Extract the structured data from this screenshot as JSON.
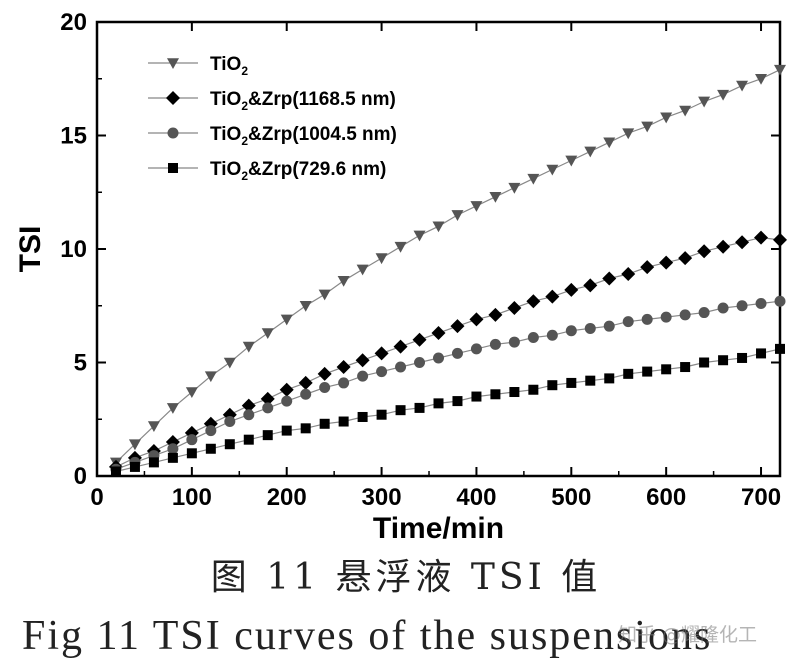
{
  "chart_data": {
    "type": "line",
    "title": "",
    "xlabel": "Time/min",
    "ylabel": "TSI",
    "xlim": [
      0,
      720
    ],
    "ylim": [
      0,
      20
    ],
    "xticks": [
      0,
      100,
      200,
      300,
      400,
      500,
      600,
      700
    ],
    "yticks": [
      0,
      5,
      10,
      15,
      20
    ],
    "grid": false,
    "legend_position": "top-left",
    "x": [
      20,
      40,
      60,
      80,
      100,
      120,
      140,
      160,
      180,
      200,
      220,
      240,
      260,
      280,
      300,
      320,
      340,
      360,
      380,
      400,
      420,
      440,
      460,
      480,
      500,
      520,
      540,
      560,
      580,
      600,
      620,
      640,
      660,
      680,
      700,
      720
    ],
    "series": [
      {
        "name": "TiO2",
        "legend_main": "TiO",
        "legend_sub": "2",
        "legend_rest": "",
        "marker": "triangle-down",
        "color": "#555555",
        "values": [
          0.6,
          1.4,
          2.2,
          3.0,
          3.7,
          4.4,
          5.0,
          5.7,
          6.3,
          6.9,
          7.5,
          8.0,
          8.6,
          9.1,
          9.6,
          10.1,
          10.6,
          11.0,
          11.5,
          11.9,
          12.3,
          12.7,
          13.1,
          13.5,
          13.9,
          14.3,
          14.7,
          15.1,
          15.4,
          15.8,
          16.1,
          16.5,
          16.8,
          17.2,
          17.5,
          17.9
        ]
      },
      {
        "name": "TiO2&Zrp(1168.5 nm)",
        "legend_main": "TiO",
        "legend_sub": "2",
        "legend_rest": "&Zrp(1168.5 nm)",
        "marker": "diamond",
        "color": "#000000",
        "values": [
          0.4,
          0.8,
          1.1,
          1.5,
          1.9,
          2.3,
          2.7,
          3.1,
          3.4,
          3.8,
          4.1,
          4.5,
          4.8,
          5.1,
          5.4,
          5.7,
          6.0,
          6.3,
          6.6,
          6.9,
          7.1,
          7.4,
          7.7,
          7.9,
          8.2,
          8.4,
          8.7,
          8.9,
          9.2,
          9.4,
          9.6,
          9.9,
          10.1,
          10.3,
          10.5,
          10.4
        ]
      },
      {
        "name": "TiO2&Zrp(1004.5 nm)",
        "legend_main": "TiO",
        "legend_sub": "2",
        "legend_rest": "&Zrp(1004.5 nm)",
        "marker": "circle",
        "color": "#555555",
        "values": [
          0.3,
          0.6,
          0.9,
          1.2,
          1.6,
          2.0,
          2.4,
          2.7,
          3.0,
          3.3,
          3.6,
          3.9,
          4.1,
          4.4,
          4.6,
          4.8,
          5.0,
          5.2,
          5.4,
          5.6,
          5.8,
          5.9,
          6.1,
          6.2,
          6.4,
          6.5,
          6.6,
          6.8,
          6.9,
          7.0,
          7.1,
          7.2,
          7.4,
          7.5,
          7.6,
          7.7
        ]
      },
      {
        "name": "TiO2&Zrp(729.6 nm)",
        "legend_main": "TiO",
        "legend_sub": "2",
        "legend_rest": "&Zrp(729.6 nm)",
        "marker": "square",
        "color": "#000000",
        "values": [
          0.2,
          0.4,
          0.6,
          0.8,
          1.0,
          1.2,
          1.4,
          1.6,
          1.8,
          2.0,
          2.1,
          2.3,
          2.4,
          2.6,
          2.7,
          2.9,
          3.0,
          3.2,
          3.3,
          3.5,
          3.6,
          3.7,
          3.8,
          4.0,
          4.1,
          4.2,
          4.3,
          4.5,
          4.6,
          4.7,
          4.8,
          5.0,
          5.1,
          5.2,
          5.4,
          5.6
        ]
      }
    ]
  },
  "caption_cn": "图 11  悬浮液 TSI 值",
  "caption_en": "Fig 11 TSI curves of the suspensions",
  "watermark": "知乎 @耀隆化工"
}
